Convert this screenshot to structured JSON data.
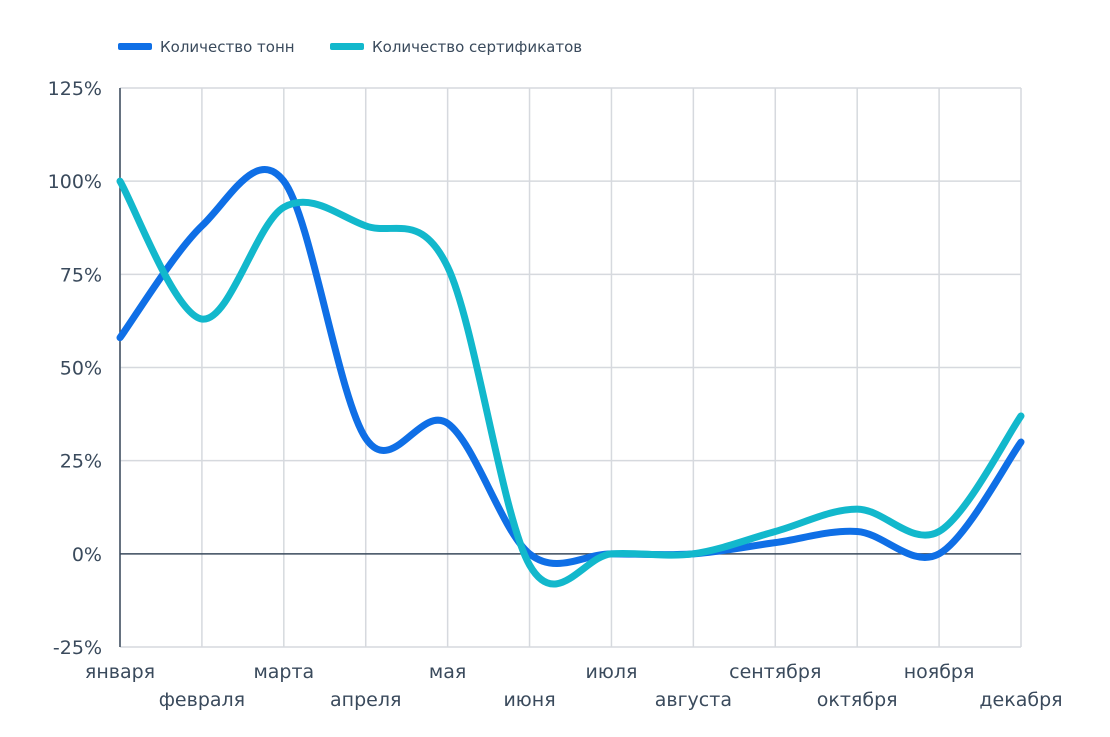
{
  "chart_data": {
    "type": "line",
    "categories": [
      "января",
      "февраля",
      "марта",
      "апреля",
      "мая",
      "июня",
      "июля",
      "августа",
      "сентября",
      "октября",
      "ноября",
      "декабря"
    ],
    "series": [
      {
        "name": "Количество тонн",
        "color": "#0f6fe6",
        "values": [
          58,
          88,
          100,
          31,
          35,
          0,
          0,
          0,
          3,
          6,
          0,
          30
        ]
      },
      {
        "name": "Количество сертификатов",
        "color": "#12b8cc",
        "values": [
          100,
          63,
          93,
          88,
          77,
          -3,
          0,
          0,
          6,
          12,
          6,
          37
        ]
      }
    ],
    "y_ticks": [
      "-25%",
      "0%",
      "25%",
      "50%",
      "75%",
      "100%",
      "125%"
    ],
    "ylim": [
      -25,
      125
    ],
    "y_unit": "%",
    "grid": true,
    "legend_position": "top-left"
  }
}
